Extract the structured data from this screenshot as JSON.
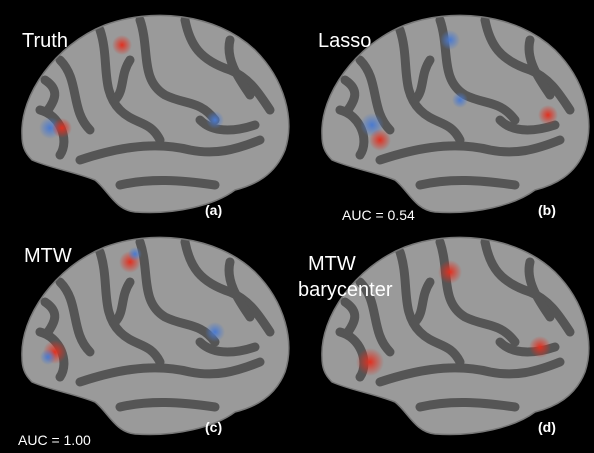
{
  "panels": [
    {
      "label": "Truth",
      "tag": "(a)"
    },
    {
      "label": "Lasso",
      "tag": "(b)",
      "auc": "AUC = 0.54"
    },
    {
      "label": "MTW",
      "tag": "(c)",
      "auc": "AUC = 1.00"
    },
    {
      "label_lines": [
        "MTW",
        "barycenter"
      ],
      "tag": "(d)"
    }
  ]
}
